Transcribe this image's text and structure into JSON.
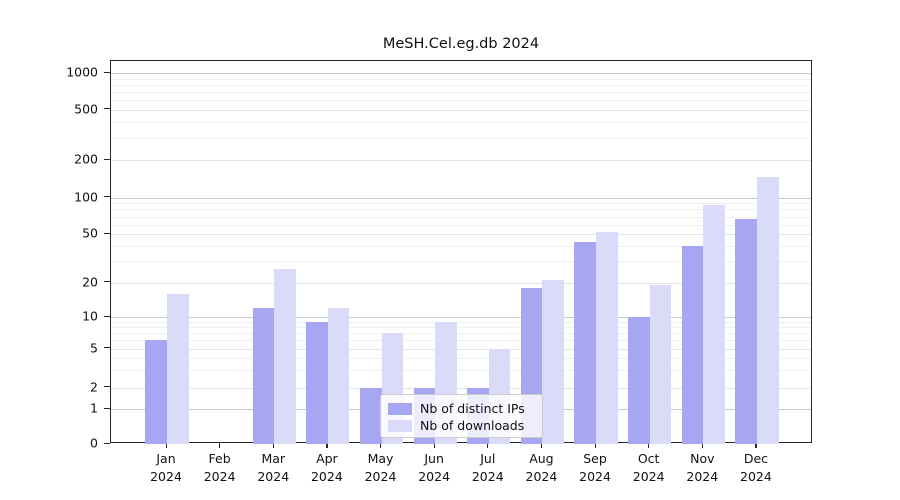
{
  "window": {
    "title": "MeSH.Cel.eg.db 2024"
  },
  "chart_data": {
    "type": "bar",
    "title": "MeSH.Cel.eg.db 2024",
    "categories": [
      "Jan",
      "Feb",
      "Mar",
      "Apr",
      "May",
      "Jun",
      "Jul",
      "Aug",
      "Sep",
      "Oct",
      "Nov",
      "Dec"
    ],
    "category_year": "2024",
    "series": [
      {
        "name": "Nb of distinct IPs",
        "color": "#a6a6f2",
        "values": [
          6,
          0,
          12,
          9,
          2,
          2,
          2,
          18,
          43,
          10,
          40,
          67
        ]
      },
      {
        "name": "Nb of downloads",
        "color": "#dadaf9",
        "values": [
          16,
          0,
          26,
          12,
          7,
          9,
          5,
          21,
          52,
          19,
          87,
          147
        ]
      }
    ],
    "y_axis": {
      "scale": "log",
      "ticks": [
        0,
        1,
        2,
        5,
        10,
        20,
        50,
        100,
        200,
        500,
        1000
      ],
      "ylim": [
        0,
        1000
      ]
    },
    "x_axis": {
      "label_line2": "2024"
    },
    "legend": {
      "position": "lower-center",
      "entries": [
        "Nb of distinct IPs",
        "Nb of downloads"
      ]
    },
    "grid": true
  },
  "colors": {
    "bar_distinct_ips": "#a6a6f2",
    "bar_downloads": "#dadaf9",
    "grid_major": "#c9c9c9",
    "grid_minor": "#efefef",
    "spine": "#262626",
    "background": "#ffffff"
  }
}
